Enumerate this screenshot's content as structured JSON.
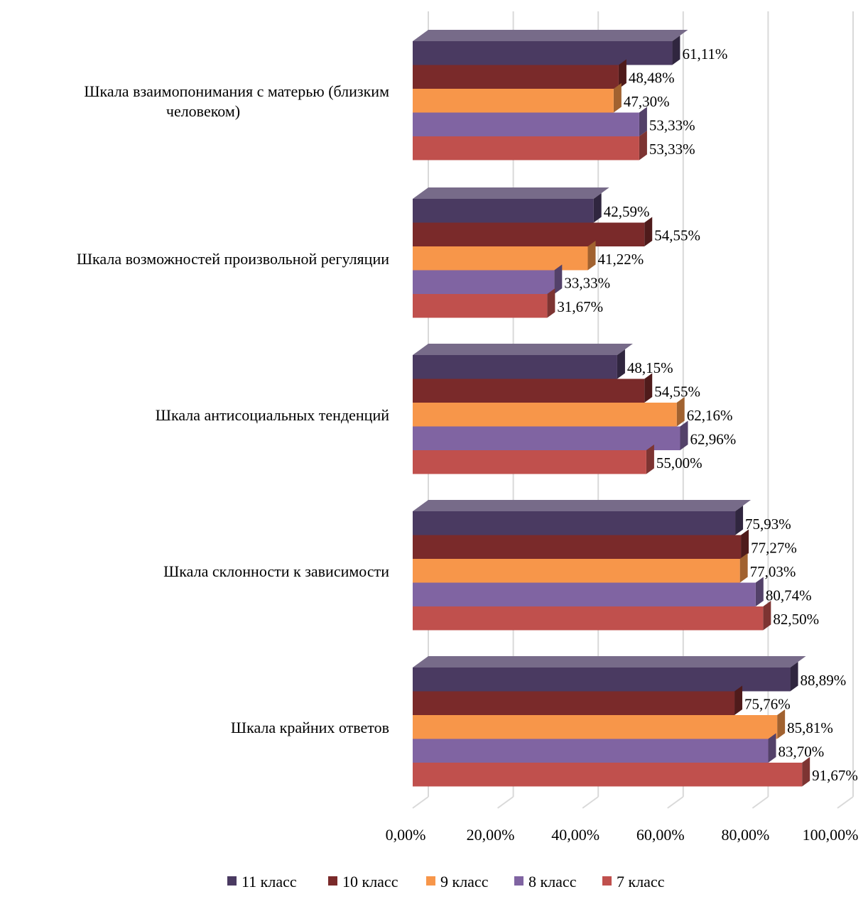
{
  "chart_data": {
    "type": "bar",
    "orientation": "horizontal",
    "style": "3d-clustered",
    "title": "",
    "xlabel": "",
    "ylabel": "",
    "xlim": [
      0,
      100
    ],
    "x_ticks": [
      "0,00%",
      "20,00%",
      "40,00%",
      "60,00%",
      "80,00%",
      "100,00%"
    ],
    "grid": true,
    "legend_position": "bottom",
    "categories": [
      [
        "Шкала взаимопонимания с матерью (близким",
        "человеком)"
      ],
      [
        "Шкала возможностей произвольной регуляции"
      ],
      [
        "Шкала антисоциальных тенденций"
      ],
      [
        "Шкала склонности к зависимости"
      ],
      [
        "Шкала крайних ответов"
      ]
    ],
    "series": [
      {
        "name": "11 класс",
        "color": "#4A3A61",
        "values": [
          61.11,
          42.59,
          48.15,
          75.93,
          88.89
        ],
        "labels": [
          "61,11%",
          "42,59%",
          "48,15%",
          "75,93%",
          "88,89%"
        ]
      },
      {
        "name": "10 класс",
        "color": "#7A2A2A",
        "values": [
          48.48,
          54.55,
          54.55,
          77.27,
          75.76
        ],
        "labels": [
          "48,48%",
          "54,55%",
          "54,55%",
          "77,27%",
          "75,76%"
        ]
      },
      {
        "name": "9 класс",
        "color": "#F7964A",
        "values": [
          47.3,
          41.22,
          62.16,
          77.03,
          85.81
        ],
        "labels": [
          "47,30%",
          "41,22%",
          "62,16%",
          "77,03%",
          "85,81%"
        ]
      },
      {
        "name": "8 класс",
        "color": "#8064A2",
        "values": [
          53.33,
          33.33,
          62.96,
          80.74,
          83.7
        ],
        "labels": [
          "53,33%",
          "33,33%",
          "62,96%",
          "80,74%",
          "83,70%"
        ]
      },
      {
        "name": "7 класс",
        "color": "#C0504D",
        "values": [
          53.33,
          31.67,
          55.0,
          82.5,
          91.67
        ],
        "labels": [
          "53,33%",
          "31,67%",
          "55,00%",
          "82,50%",
          "91,67%"
        ]
      }
    ]
  }
}
